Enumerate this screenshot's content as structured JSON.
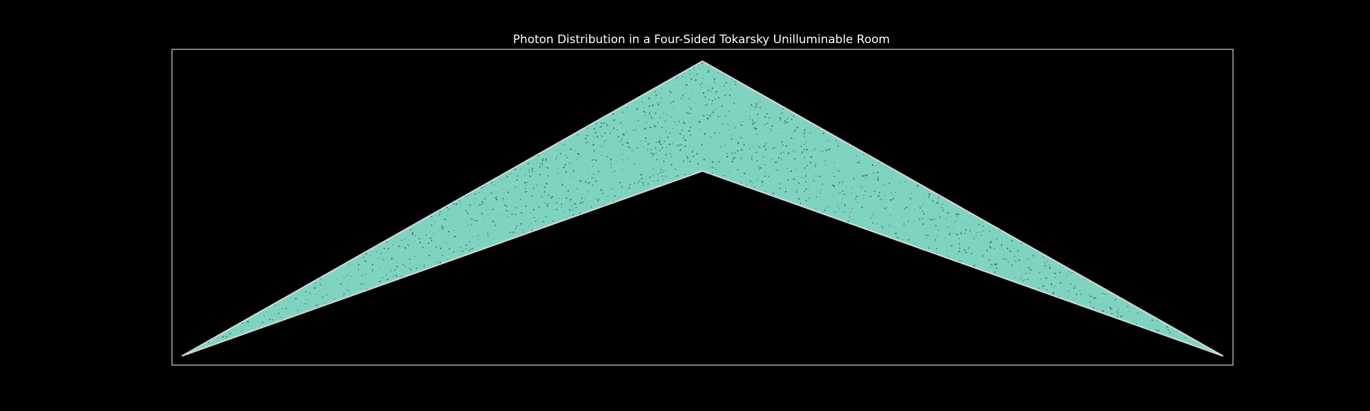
{
  "chart_data": {
    "type": "scatter",
    "title": "Photon Distribution in a Four-Sided Tokarsky Unilluminable Room",
    "xlabel": "",
    "ylabel": "",
    "xlim": [
      -1.02,
      1.02
    ],
    "ylim": [
      -0.03,
      0.985
    ],
    "axes_visible": false,
    "grid": false,
    "room_outline": {
      "x": [
        -1.0,
        0.0,
        1.0,
        0.0,
        -1.0
      ],
      "y": [
        0.0,
        0.947,
        0.0,
        0.594,
        0.0
      ]
    },
    "photon_count_shown": 50000,
    "colors": {
      "background": "#000000",
      "frame": "#ffffff",
      "photons": "#7fd4c1",
      "photon_shade": "#0c2a25",
      "outline": "#cfd8d6",
      "title": "#ffffff"
    }
  }
}
